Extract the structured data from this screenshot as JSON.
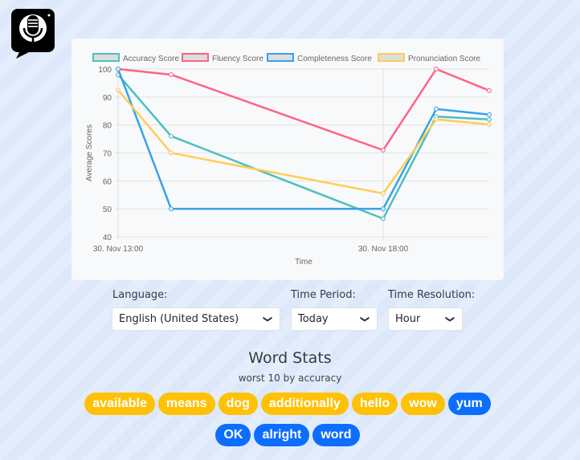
{
  "logo": {
    "icon": "microphone-speech-bubble-icon"
  },
  "chart_data": {
    "type": "line",
    "x": [
      "30. Nov 13:00",
      "30. Nov 14:00",
      "30. Nov 18:00",
      "30. Nov 19:00",
      "30. Nov 20:00"
    ],
    "x_hours": [
      13,
      14,
      18,
      19,
      20
    ],
    "x_ticks": [
      "30. Nov 13:00",
      "30. Nov 18:00"
    ],
    "xlabel": "Time",
    "ylabel": "Average Scores",
    "ylim": [
      40,
      100
    ],
    "yticks": [
      40,
      50,
      60,
      70,
      80,
      90,
      100
    ],
    "grid": true,
    "legend": "top",
    "series": [
      {
        "name": "Accuracy Score",
        "color": "#4bc0c0",
        "values": [
          98,
          76,
          46.5,
          83,
          82
        ]
      },
      {
        "name": "Fluency Score",
        "color": "#ff6384",
        "values": [
          100,
          98,
          71,
          100,
          92.3
        ]
      },
      {
        "name": "Completeness Score",
        "color": "#36a2eb",
        "values": [
          100,
          50,
          50,
          85.7,
          83.7
        ]
      },
      {
        "name": "Pronunciation Score",
        "color": "#ffcd56",
        "values": [
          92.5,
          70,
          55.5,
          82,
          80.2
        ]
      }
    ]
  },
  "filters": {
    "language": {
      "label": "Language:",
      "value": "English (United States)"
    },
    "period": {
      "label": "Time Period:",
      "value": "Today"
    },
    "resolution": {
      "label": "Time Resolution:",
      "value": "Hour"
    }
  },
  "word_stats": {
    "title": "Word Stats",
    "subtitle": "worst 10 by accuracy",
    "words": [
      {
        "text": "available",
        "color": "#ffc107"
      },
      {
        "text": "means",
        "color": "#ffc107"
      },
      {
        "text": "dog",
        "color": "#ffc107"
      },
      {
        "text": "additionally",
        "color": "#ffc107"
      },
      {
        "text": "hello",
        "color": "#ffc107"
      },
      {
        "text": "wow",
        "color": "#ffc107"
      },
      {
        "text": "yum",
        "color": "#0d6efd"
      },
      {
        "text": "OK",
        "color": "#0d6efd"
      },
      {
        "text": "alright",
        "color": "#0d6efd"
      },
      {
        "text": "word",
        "color": "#0d6efd"
      }
    ]
  }
}
